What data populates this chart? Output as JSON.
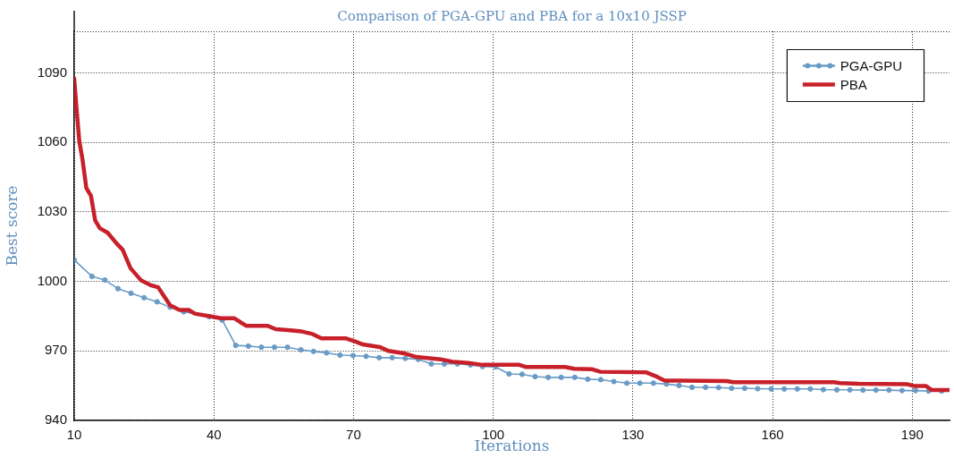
{
  "chart_data": {
    "type": "line",
    "title": "Comparison of PGA-GPU and PBA for a 10x10 JSSP",
    "xlabel": "Iterations",
    "ylabel": "Best score",
    "xlim": [
      10,
      198
    ],
    "ylim": [
      940,
      1108
    ],
    "xticks": [
      10,
      40,
      70,
      100,
      130,
      160,
      190
    ],
    "yticks": [
      940,
      970,
      1000,
      1030,
      1060,
      1090
    ],
    "grid": true,
    "legend": "top right",
    "series": [
      {
        "name": "PGA-GPU",
        "color": "#6a9bc7",
        "marker": "circle",
        "x": [
          10,
          13.8,
          16.6,
          19.4,
          22.2,
          25.0,
          27.8,
          30.6,
          33.5,
          39.0,
          41.8,
          44.7,
          47.4,
          50.2,
          53.0,
          55.8,
          58.7,
          61.4,
          64.2,
          67.1,
          69.9,
          72.7,
          75.5,
          78.3,
          81.1,
          83.9,
          86.7,
          89.5,
          92.3,
          95.1,
          97.7,
          100.5,
          103.4,
          106.2,
          109.0,
          111.8,
          114.6,
          117.5,
          120.3,
          123.1,
          125.9,
          128.7,
          131.5,
          134.4,
          137.2,
          139.9,
          142.7,
          145.6,
          148.4,
          151.2,
          154.0,
          156.8,
          159.7,
          162.5,
          165.3,
          168.1,
          170.9,
          173.8,
          176.6,
          179.4,
          182.2,
          185.0,
          187.8,
          190.7,
          193.5,
          196.3
        ],
        "values": [
          1009.3,
          1002.2,
          1000.6,
          996.9,
          994.9,
          993.0,
          991.2,
          988.9,
          986.9,
          984.8,
          983.3,
          972.4,
          972.1,
          971.6,
          971.6,
          971.6,
          970.5,
          969.8,
          969.2,
          968.2,
          968.0,
          967.7,
          967.1,
          967.1,
          966.8,
          966.4,
          964.4,
          964.4,
          964.4,
          964.0,
          963.3,
          963.1,
          960.1,
          959.9,
          958.9,
          958.6,
          958.6,
          958.6,
          957.8,
          957.6,
          956.8,
          956.1,
          956.1,
          956.1,
          955.7,
          955.1,
          954.3,
          954.3,
          954.2,
          953.9,
          953.9,
          953.7,
          953.6,
          953.6,
          953.6,
          953.6,
          953.3,
          953.2,
          953.2,
          953.1,
          953.1,
          953.1,
          952.9,
          952.9,
          952.7,
          952.7
        ]
      },
      {
        "name": "PBA",
        "color": "#c8202a",
        "marker": "none",
        "x": [
          10,
          10.6,
          11.1,
          11.8,
          12.6,
          13.6,
          14.5,
          15.5,
          17.2,
          19.1,
          20.4,
          22.1,
          24.4,
          26.4,
          28.0,
          30.6,
          32.6,
          34.6,
          35.9,
          38.8,
          41.5,
          44.4,
          45.7,
          47.0,
          51.6,
          53.3,
          55.9,
          58.9,
          61.2,
          63.1,
          68.4,
          70.3,
          72.0,
          75.6,
          77.5,
          80.8,
          83.5,
          88.7,
          91.3,
          94.6,
          97.7,
          105.6,
          106.9,
          115.4,
          117.4,
          121.3,
          123.0,
          132.8,
          134.8,
          136.8,
          150.2,
          151.5,
          173.2,
          174.5,
          178.5,
          189.0,
          190.3,
          192.9,
          194.2,
          197.9
        ],
        "values": [
          1087.7,
          1072.3,
          1060.5,
          1052.4,
          1040.4,
          1037.0,
          1026.4,
          1023.0,
          1021.0,
          1016.4,
          1013.7,
          1005.7,
          1000.4,
          998.4,
          997.5,
          989.7,
          987.7,
          987.7,
          986.1,
          985.1,
          984.1,
          984.1,
          982.4,
          980.8,
          980.8,
          979.4,
          979.0,
          978.4,
          977.3,
          975.4,
          975.4,
          974.1,
          972.8,
          971.7,
          970.0,
          969.0,
          967.4,
          966.4,
          965.3,
          964.8,
          964.0,
          964.0,
          963.1,
          963.1,
          962.3,
          962.1,
          961.0,
          960.8,
          959.2,
          957.2,
          957.0,
          956.5,
          956.5,
          956.1,
          955.8,
          955.6,
          954.9,
          954.9,
          953.1,
          953.1
        ]
      }
    ]
  }
}
